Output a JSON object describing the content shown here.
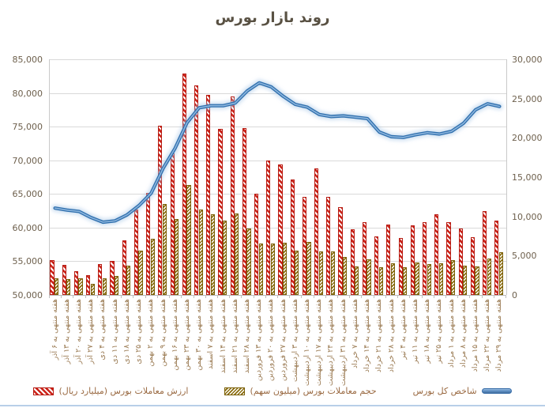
{
  "title": "روند بازار بورس",
  "left_axis": {
    "labels": [
      "85,000",
      "80,000",
      "75,000",
      "70,000",
      "65,000",
      "60,000",
      "55,000",
      "50,000"
    ]
  },
  "right_axis": {
    "labels": [
      "30,000",
      "25,000",
      "20,000",
      "15,000",
      "10,000",
      "5,000",
      "0"
    ]
  },
  "legend": [
    {
      "label": "ارزش معاملات بورس (میلیارد ریال)",
      "swatch": "red-hatch",
      "color": "#C00000"
    },
    {
      "label": "حجم معاملات بورس (میلیون سهم)",
      "swatch": "olive-hatch",
      "color": "#7F6000"
    },
    {
      "label": "شاخص کل بورس",
      "swatch": "blue-line",
      "color": "#4A86C8"
    }
  ],
  "chart_data": {
    "type": "combo-bar-line",
    "title": "روند بازار بورس",
    "grid": true,
    "legend_position": "bottom",
    "left_ylim": [
      50000,
      85000
    ],
    "right_ylim": [
      0,
      30000
    ],
    "categories": [
      "هفته منتهی به ۶ آذر",
      "هفته منتهی به ۱۳ آذر",
      "هفته منتهی به ۲۰ آذر",
      "هفته منتهی به ۲۷ آذر",
      "هفته منتهی به ۴ دی",
      "هفته منتهی به ۱۱ دی",
      "هفته منتهی به ۱۸ دی",
      "هفته منتهی به ۲۵ دی",
      "هفته منتهی به ۲ بهمن",
      "هفته منتهی به ۹ بهمن",
      "هفته منتهی به ۱۶ بهمن",
      "هفته منتهی به ۲۳ بهمن",
      "هفته منتهی به ۳۰ بهمن",
      "هفته منتهی به ۷ اسفند",
      "هفته منتهی به ۱۴ اسفند",
      "هفته منتهی به ۲۱ اسفند",
      "هفته منتهی به ۲۸ اسفند",
      "هفته منتهی به ۱۳ فروردین",
      "هفته منتهی به ۲۰ فروردین",
      "هفته منتهی به ۲۷ فروردین",
      "هفته منتهی به ۳ اردیبهشت",
      "هفته منتهی به ۱۰ اردیبهشت",
      "هفته منتهی به ۱۷ اردیبهشت",
      "هفته منتهی به ۲۴ اردیبهشت",
      "هفته منتهی به ۳۱ اردیبهشت",
      "هفته منتهی به ۷ خرداد",
      "هفته منتهی به ۱۴ خرداد",
      "هفته منتهی به ۲۱ خرداد",
      "هفته منتهی به ۲۸ خرداد",
      "هفته منتهی به ۴ تیر",
      "هفته منتهی به ۱۱ تیر",
      "هفته منتهی به ۱۸ تیر",
      "هفته منتهی به ۲۵ تیر",
      "هفته منتهی به ۱ مرداد",
      "هفته منتهی به ۸ مرداد",
      "هفته منتهی به ۱۵ مرداد",
      "هفته منتهی به ۲۲ مرداد",
      "هفته منتهی به ۲۹ مرداد"
    ],
    "series": [
      {
        "name": "ارزش معاملات بورس (میلیارد ریال)",
        "type": "bar",
        "axis": "right",
        "color": "#C00000",
        "values": [
          4400,
          3800,
          3000,
          2500,
          3900,
          4300,
          6900,
          10900,
          13000,
          21500,
          18000,
          28200,
          26700,
          25500,
          21100,
          25300,
          21200,
          12900,
          17100,
          16600,
          14700,
          12500,
          16100,
          12500,
          11200,
          8400,
          9300,
          7500,
          9000,
          7200,
          8900,
          9300,
          10300,
          9300,
          8500,
          7400,
          10700,
          9500
        ]
      },
      {
        "name": "حجم معاملات بورس (میلیون سهم)",
        "type": "bar",
        "axis": "right",
        "color": "#7F6000",
        "values": [
          2100,
          2000,
          2100,
          1400,
          2100,
          2400,
          3700,
          5600,
          7100,
          11600,
          9700,
          14000,
          10900,
          10300,
          9500,
          10400,
          8500,
          6500,
          6500,
          6600,
          5600,
          6700,
          5500,
          5500,
          4800,
          3600,
          4500,
          3500,
          4000,
          3500,
          4100,
          3900,
          4000,
          4400,
          3700,
          3600,
          4600,
          5400
        ]
      },
      {
        "name": "شاخص کل بورس",
        "type": "line",
        "axis": "left",
        "color": "#4A86C8",
        "values": [
          62900,
          62600,
          62400,
          61500,
          60800,
          61000,
          61900,
          63300,
          65100,
          68800,
          71800,
          75600,
          77800,
          78100,
          78100,
          78500,
          80300,
          81500,
          80900,
          79500,
          78300,
          77900,
          76800,
          76500,
          76600,
          76400,
          76200,
          74200,
          73500,
          73400,
          73800,
          74100,
          73900,
          74300,
          75500,
          77500,
          78400,
          78000
        ]
      }
    ]
  }
}
